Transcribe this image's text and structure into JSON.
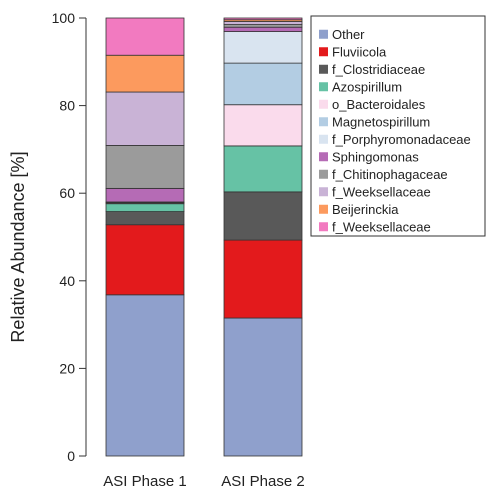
{
  "chart_data": {
    "type": "bar",
    "stacked": true,
    "title": "",
    "xlabel": "",
    "ylabel": "Relative Abundance  [%]",
    "ylim": [
      0,
      100
    ],
    "yticks": [
      0,
      20,
      40,
      60,
      80,
      100
    ],
    "categories": [
      "ASI Phase 1",
      "ASI Phase 2"
    ],
    "legend_position": "right",
    "series": [
      {
        "name": "Other",
        "color": "#8fa0cc",
        "values": [
          36.8,
          31.5
        ]
      },
      {
        "name": "Fluviicola",
        "color": "#e31a1c",
        "values": [
          16.0,
          17.8
        ]
      },
      {
        "name": "f_Clostridiaceae",
        "color": "#595959",
        "values": [
          3.0,
          11.0
        ]
      },
      {
        "name": "Azospirillum",
        "color": "#66c2a5",
        "values": [
          1.8,
          10.5
        ]
      },
      {
        "name": "o_Bacteroidales",
        "color": "#fadbec",
        "values": [
          0.2,
          9.4
        ]
      },
      {
        "name": "Magnetospirillum",
        "color": "#b3cde3",
        "values": [
          0.1,
          9.5
        ]
      },
      {
        "name": "f_Porphyromonadaceae",
        "color": "#d9e4f0",
        "values": [
          0.1,
          7.2
        ]
      },
      {
        "name": "Sphingomonas",
        "color": "#b56bb5",
        "values": [
          3.1,
          1.0
        ]
      },
      {
        "name": "f_Chitinophagaceae",
        "color": "#9b9b9b",
        "values": [
          9.8,
          0.6
        ]
      },
      {
        "name": "f_Weeksellaceae",
        "color": "#c9b3d6",
        "values": [
          12.2,
          0.7
        ]
      },
      {
        "name": "Beijerinckia",
        "color": "#fc9a5e",
        "values": [
          8.4,
          0.4
        ]
      },
      {
        "name": "f_Weeksellaceae",
        "color": "#f27ac0",
        "values": [
          8.5,
          0.4
        ]
      }
    ]
  }
}
